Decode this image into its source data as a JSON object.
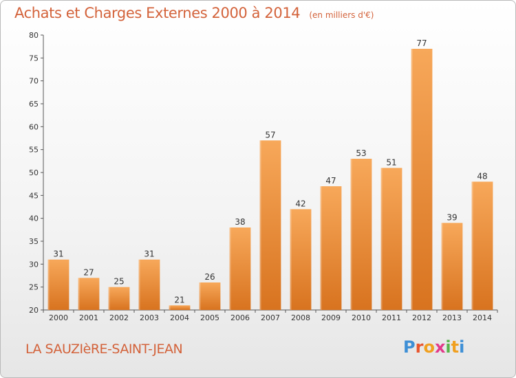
{
  "title": "Achats et Charges Externes 2000 à 2014",
  "subtitle": "(en milliers d'€)",
  "commune": "LA SAUZIèRE-SAINT-JEAN",
  "logo": {
    "letters": [
      "P",
      "r",
      "o",
      "x",
      "i",
      "t",
      "i"
    ],
    "colors": [
      "#3d8fd6",
      "#e8542c",
      "#f0a020",
      "#e23a8a",
      "#58b34a",
      "#f0a020",
      "#3d8fd6"
    ]
  },
  "colors": {
    "bar_light": "#f7a85a",
    "bar_dark": "#d8731f",
    "text_accent": "#d3623a"
  },
  "chart_data": {
    "type": "bar",
    "title": "Achats et Charges Externes 2000 à 2014",
    "subtitle": "(en milliers d'€)",
    "categories": [
      "2000",
      "2001",
      "2002",
      "2003",
      "2004",
      "2005",
      "2006",
      "2007",
      "2008",
      "2009",
      "2010",
      "2011",
      "2012",
      "2013",
      "2014"
    ],
    "values": [
      31,
      27,
      25,
      31,
      21,
      26,
      38,
      57,
      42,
      47,
      53,
      51,
      77,
      39,
      48
    ],
    "ylim": [
      20,
      80
    ],
    "yticks": [
      20,
      25,
      30,
      35,
      40,
      45,
      50,
      55,
      60,
      65,
      70,
      75,
      80
    ],
    "grid": false,
    "xlabel": "",
    "ylabel": ""
  }
}
